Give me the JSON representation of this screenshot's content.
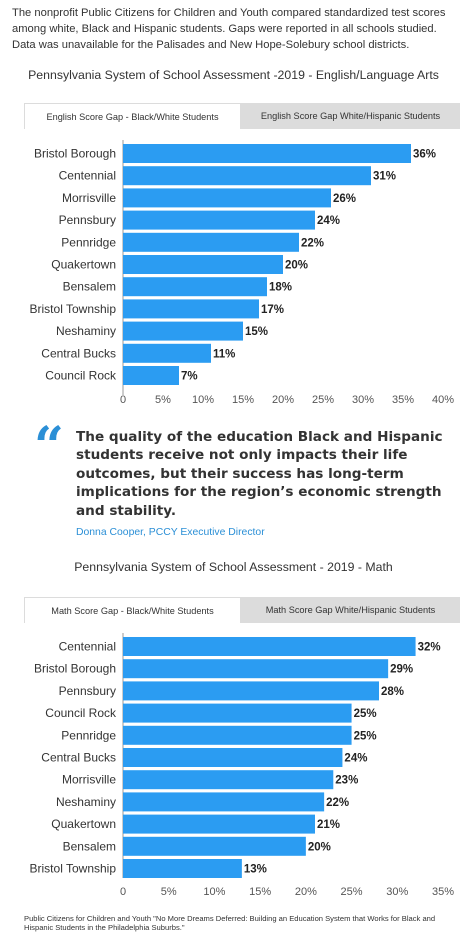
{
  "intro": "The nonprofit Public Citizens for Children and Youth compared standardized test scores among white, Black and Hispanic students. Gaps were reported in all schools studied. Data was unavailable for the Palisades and New Hope-Solebury school districts.",
  "colors": {
    "bar": "#2b9cf2",
    "accent": "#2b8fd6",
    "axis": "#999999",
    "tab_inactive": "#dcdcdc"
  },
  "quote": {
    "mark": "“",
    "text": "The quality of the education Black and Hispanic students receive not only impacts their life outcomes, but their success has long-term implications for the region’s economic strength and stability.",
    "attribution": "Donna Cooper, PCCY Executive Director"
  },
  "source": "Public Citizens for Children and Youth \"No More Dreams Deferred: Building an Education System that Works for Black and Hispanic Students in the Philadelphia Suburbs.\"",
  "chart_data": [
    {
      "type": "bar",
      "orientation": "horizontal",
      "title": "Pennsylvania System of School Assessment -2019 - English/Language Arts",
      "tabs": [
        "English Score Gap - Black/White Students",
        "English Score Gap White/Hispanic Students"
      ],
      "active_tab": 0,
      "categories": [
        "Bristol Borough",
        "Centennial",
        "Morrisville",
        "Pennsbury",
        "Pennridge",
        "Quakertown",
        "Bensalem",
        "Bristol Township",
        "Neshaminy",
        "Central Bucks",
        "Council Rock"
      ],
      "values": [
        36,
        31,
        26,
        24,
        22,
        20,
        18,
        17,
        15,
        11,
        7
      ],
      "value_labels": [
        "36%",
        "31%",
        "26%",
        "24%",
        "22%",
        "20%",
        "18%",
        "17%",
        "15%",
        "11%",
        "7%"
      ],
      "xlim": [
        0,
        40
      ],
      "ticks": [
        0,
        5,
        10,
        15,
        20,
        25,
        30,
        35,
        40
      ],
      "tick_labels": [
        "0",
        "5%",
        "10%",
        "15%",
        "20%",
        "25%",
        "30%",
        "35%",
        "40%"
      ],
      "grid": false
    },
    {
      "type": "bar",
      "orientation": "horizontal",
      "title": "Pennsylvania System of School Assessment - 2019 - Math",
      "tabs": [
        "Math Score Gap - Black/White Students",
        "Math Score Gap White/Hispanic Students"
      ],
      "active_tab": 0,
      "categories": [
        "Centennial",
        "Bristol Borough",
        "Pennsbury",
        "Council Rock",
        "Pennridge",
        "Central Bucks",
        "Morrisville",
        "Neshaminy",
        "Quakertown",
        "Bensalem",
        "Bristol Township"
      ],
      "values": [
        32,
        29,
        28,
        25,
        25,
        24,
        23,
        22,
        21,
        20,
        13
      ],
      "value_labels": [
        "32%",
        "29%",
        "28%",
        "25%",
        "25%",
        "24%",
        "23%",
        "22%",
        "21%",
        "20%",
        "13%"
      ],
      "xlim": [
        0,
        35
      ],
      "ticks": [
        0,
        5,
        10,
        15,
        20,
        25,
        30,
        35
      ],
      "tick_labels": [
        "0",
        "5%",
        "10%",
        "15%",
        "20%",
        "25%",
        "30%",
        "35%"
      ],
      "grid": false
    }
  ]
}
